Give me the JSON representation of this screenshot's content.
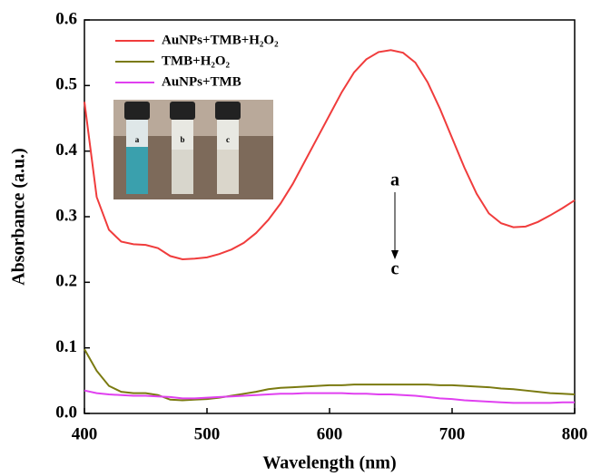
{
  "chart_data": {
    "type": "line",
    "x_label": "Wavelength (nm)",
    "y_label": "Absorbance (a.u.)",
    "x": [
      400,
      410,
      420,
      430,
      440,
      450,
      460,
      470,
      480,
      490,
      500,
      510,
      520,
      530,
      540,
      550,
      560,
      570,
      580,
      590,
      600,
      610,
      620,
      630,
      640,
      650,
      660,
      670,
      680,
      690,
      700,
      710,
      720,
      730,
      740,
      750,
      760,
      770,
      780,
      790,
      800
    ],
    "series": [
      {
        "name": "AuNPs+TMB+H₂O₂",
        "color": "#f03c3c",
        "values": [
          0.475,
          0.33,
          0.28,
          0.262,
          0.258,
          0.257,
          0.252,
          0.24,
          0.235,
          0.236,
          0.238,
          0.243,
          0.25,
          0.26,
          0.275,
          0.295,
          0.32,
          0.35,
          0.385,
          0.42,
          0.455,
          0.49,
          0.52,
          0.54,
          0.551,
          0.554,
          0.55,
          0.535,
          0.505,
          0.465,
          0.42,
          0.375,
          0.335,
          0.305,
          0.29,
          0.284,
          0.285,
          0.292,
          0.302,
          0.313,
          0.325
        ]
      },
      {
        "name": "TMB+H₂O₂",
        "color": "#7a7a10",
        "values": [
          0.098,
          0.065,
          0.042,
          0.033,
          0.031,
          0.031,
          0.028,
          0.021,
          0.02,
          0.021,
          0.022,
          0.024,
          0.027,
          0.03,
          0.033,
          0.037,
          0.039,
          0.04,
          0.041,
          0.042,
          0.043,
          0.043,
          0.044,
          0.044,
          0.044,
          0.044,
          0.044,
          0.044,
          0.044,
          0.043,
          0.043,
          0.042,
          0.041,
          0.04,
          0.038,
          0.037,
          0.035,
          0.033,
          0.031,
          0.03,
          0.029
        ]
      },
      {
        "name": "AuNPs+TMB",
        "color": "#e040f0",
        "values": [
          0.035,
          0.031,
          0.029,
          0.028,
          0.027,
          0.027,
          0.026,
          0.025,
          0.023,
          0.023,
          0.024,
          0.025,
          0.026,
          0.027,
          0.028,
          0.029,
          0.03,
          0.03,
          0.031,
          0.031,
          0.031,
          0.031,
          0.03,
          0.03,
          0.029,
          0.029,
          0.028,
          0.027,
          0.025,
          0.023,
          0.022,
          0.02,
          0.019,
          0.018,
          0.017,
          0.016,
          0.016,
          0.016,
          0.016,
          0.017,
          0.017
        ]
      }
    ],
    "xlim": [
      400,
      800
    ],
    "xticks": [
      400,
      500,
      600,
      700,
      800
    ],
    "ylim": [
      0,
      0.6
    ],
    "yticks": [
      {
        "value": 0,
        "label": "0.0"
      },
      0.1,
      0.2,
      0.3,
      0.4,
      0.5,
      0.6
    ],
    "annotations": [
      "a",
      "c"
    ],
    "inset_labels": [
      "a",
      "b",
      "c"
    ]
  }
}
